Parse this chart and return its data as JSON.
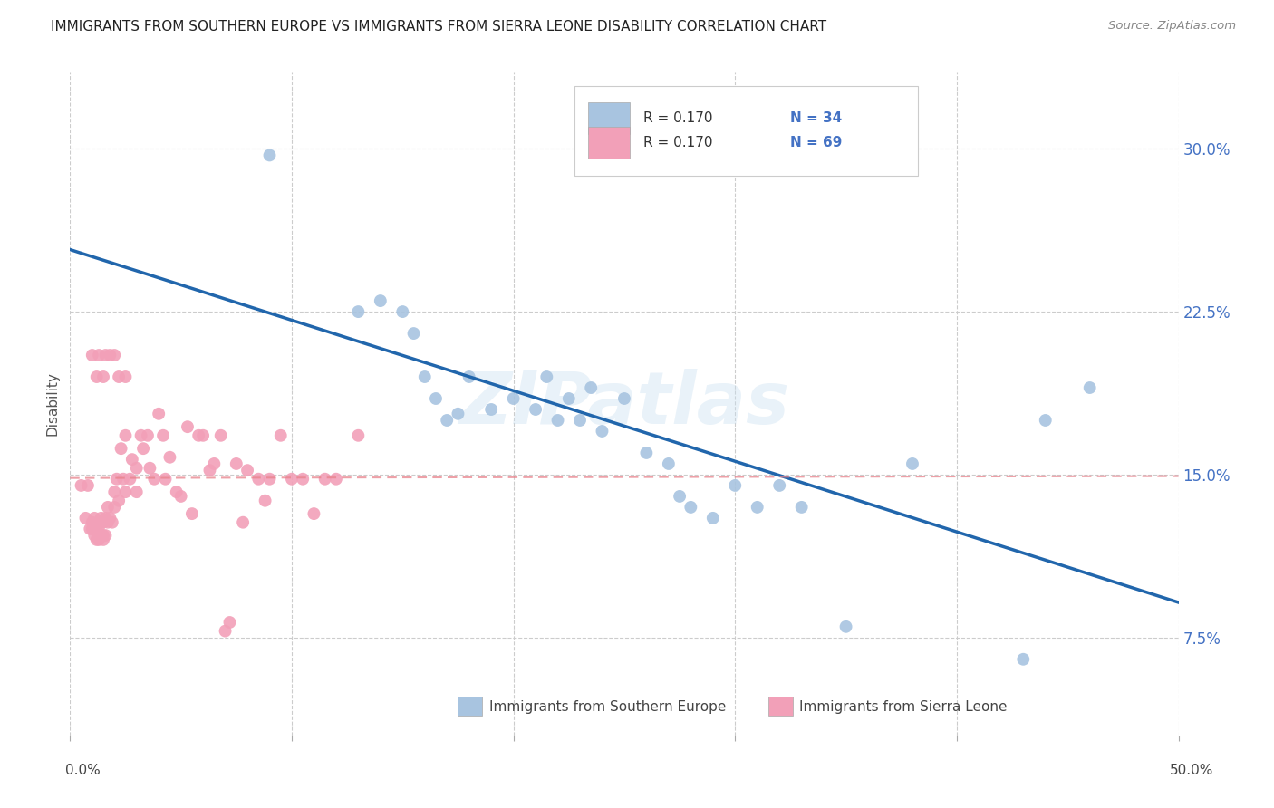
{
  "title": "IMMIGRANTS FROM SOUTHERN EUROPE VS IMMIGRANTS FROM SIERRA LEONE DISABILITY CORRELATION CHART",
  "source": "Source: ZipAtlas.com",
  "ylabel": "Disability",
  "ytick_vals": [
    0.075,
    0.15,
    0.225,
    0.3
  ],
  "ytick_labels": [
    "7.5%",
    "15.0%",
    "22.5%",
    "30.0%"
  ],
  "xlim": [
    0.0,
    0.5
  ],
  "ylim": [
    0.03,
    0.335
  ],
  "blue_color": "#a8c4e0",
  "pink_color": "#f2a0b8",
  "blue_line_color": "#2166ac",
  "pink_line_color": "#e8808a",
  "blue_label": "Immigrants from Southern Europe",
  "pink_label": "Immigrants from Sierra Leone",
  "watermark": "ZIPatlas",
  "legend_color": "#4472c4",
  "blue_scatter_x": [
    0.09,
    0.13,
    0.14,
    0.15,
    0.155,
    0.16,
    0.165,
    0.17,
    0.175,
    0.18,
    0.19,
    0.2,
    0.21,
    0.215,
    0.22,
    0.225,
    0.23,
    0.235,
    0.24,
    0.25,
    0.26,
    0.27,
    0.275,
    0.28,
    0.29,
    0.3,
    0.31,
    0.32,
    0.33,
    0.35,
    0.38,
    0.43,
    0.44,
    0.46
  ],
  "blue_scatter_y": [
    0.297,
    0.225,
    0.23,
    0.225,
    0.215,
    0.195,
    0.185,
    0.175,
    0.178,
    0.195,
    0.18,
    0.185,
    0.18,
    0.195,
    0.175,
    0.185,
    0.175,
    0.19,
    0.17,
    0.185,
    0.16,
    0.155,
    0.14,
    0.135,
    0.13,
    0.145,
    0.135,
    0.145,
    0.135,
    0.08,
    0.155,
    0.065,
    0.175,
    0.19
  ],
  "pink_scatter_x": [
    0.005,
    0.007,
    0.008,
    0.009,
    0.01,
    0.01,
    0.011,
    0.011,
    0.012,
    0.012,
    0.013,
    0.013,
    0.013,
    0.014,
    0.014,
    0.015,
    0.015,
    0.015,
    0.016,
    0.016,
    0.017,
    0.017,
    0.018,
    0.019,
    0.02,
    0.02,
    0.021,
    0.022,
    0.023,
    0.024,
    0.025,
    0.025,
    0.027,
    0.028,
    0.03,
    0.03,
    0.032,
    0.033,
    0.035,
    0.036,
    0.038,
    0.04,
    0.042,
    0.043,
    0.045,
    0.048,
    0.05,
    0.053,
    0.055,
    0.058,
    0.06,
    0.063,
    0.065,
    0.068,
    0.07,
    0.072,
    0.075,
    0.078,
    0.08,
    0.085,
    0.088,
    0.09,
    0.095,
    0.1,
    0.105,
    0.11,
    0.115,
    0.12,
    0.13
  ],
  "pink_scatter_y": [
    0.145,
    0.13,
    0.145,
    0.125,
    0.125,
    0.128,
    0.122,
    0.13,
    0.12,
    0.126,
    0.122,
    0.12,
    0.126,
    0.122,
    0.13,
    0.122,
    0.12,
    0.128,
    0.122,
    0.13,
    0.128,
    0.135,
    0.13,
    0.128,
    0.135,
    0.142,
    0.148,
    0.138,
    0.162,
    0.148,
    0.168,
    0.142,
    0.148,
    0.157,
    0.142,
    0.153,
    0.168,
    0.162,
    0.168,
    0.153,
    0.148,
    0.178,
    0.168,
    0.148,
    0.158,
    0.142,
    0.14,
    0.172,
    0.132,
    0.168,
    0.168,
    0.152,
    0.155,
    0.168,
    0.078,
    0.082,
    0.155,
    0.128,
    0.152,
    0.148,
    0.138,
    0.148,
    0.168,
    0.148,
    0.148,
    0.132,
    0.148,
    0.148,
    0.168
  ],
  "pink_extra_x": [
    0.01,
    0.012,
    0.013,
    0.015,
    0.016,
    0.018,
    0.02,
    0.022,
    0.025
  ],
  "pink_extra_y": [
    0.205,
    0.195,
    0.205,
    0.195,
    0.205,
    0.205,
    0.205,
    0.195,
    0.195
  ]
}
